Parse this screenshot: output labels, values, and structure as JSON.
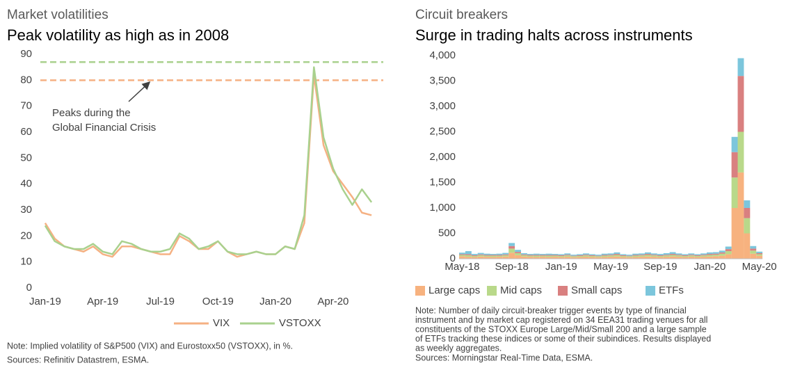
{
  "chart_data": [
    {
      "type": "line",
      "subtitle": "Market volatilities",
      "title": "Peak volatility as high as in 2008",
      "categories": [
        "Jan-19",
        null,
        null,
        null,
        null,
        null,
        "Apr-19",
        null,
        null,
        null,
        null,
        null,
        "Jul-19",
        null,
        null,
        null,
        null,
        null,
        "Oct-19",
        null,
        null,
        null,
        null,
        null,
        "Jan-20",
        null,
        null,
        null,
        null,
        null,
        "Apr-20",
        null,
        null,
        null,
        null
      ],
      "series": [
        {
          "name": "VIX",
          "color": "#f5b183",
          "values": [
            25,
            19,
            16,
            15,
            14,
            16,
            13,
            12,
            16,
            16,
            15,
            14,
            13,
            13,
            20,
            18,
            15,
            15,
            18,
            14,
            12,
            13,
            14,
            13,
            13,
            16,
            15,
            25,
            82,
            55,
            45,
            40,
            35,
            29,
            28
          ]
        },
        {
          "name": "VSTOXX",
          "color": "#a9d18e",
          "values": [
            24,
            18,
            16,
            15,
            15,
            17,
            14,
            13,
            18,
            17,
            15,
            14,
            14,
            15,
            21,
            19,
            15,
            16,
            18,
            14,
            13,
            13,
            14,
            13,
            13,
            16,
            15,
            28,
            85,
            58,
            46,
            38,
            32,
            38,
            33
          ]
        }
      ],
      "ylim": [
        0,
        90
      ],
      "yticks": [
        0,
        10,
        20,
        30,
        40,
        50,
        60,
        70,
        80,
        90
      ],
      "reference_lines": [
        {
          "value": 80,
          "color": "#f5b183"
        },
        {
          "value": 87,
          "color": "#a9d18e"
        }
      ],
      "annotation": [
        "Peaks during the",
        "Global Financial Crisis"
      ],
      "legend": "bottom",
      "notes": [
        "Note: Implied volatility of S&P500 (VIX) and Eurostoxx50 (VSTOXX), in %.",
        "Sources: Refinitiv Datastrem, ESMA."
      ]
    },
    {
      "type": "stacked_bar",
      "subtitle": "Circuit breakers",
      "title": "Surge in trading halts across instruments",
      "categories": [
        "May-18",
        null,
        null,
        null,
        null,
        null,
        null,
        null,
        "Sep-18",
        null,
        null,
        null,
        null,
        null,
        null,
        null,
        "Jan-19",
        null,
        null,
        null,
        null,
        null,
        null,
        null,
        "May-19",
        null,
        null,
        null,
        null,
        null,
        null,
        null,
        "Sep-19",
        null,
        null,
        null,
        null,
        null,
        null,
        null,
        "Jan-20",
        null,
        null,
        null,
        null,
        null,
        null,
        null,
        "May-20"
      ],
      "series": [
        {
          "name": "Large caps",
          "color": "#f7b27f",
          "values": [
            50,
            40,
            35,
            45,
            40,
            35,
            40,
            45,
            120,
            70,
            45,
            40,
            35,
            40,
            35,
            40,
            35,
            40,
            30,
            35,
            40,
            35,
            30,
            35,
            40,
            45,
            35,
            30,
            35,
            40,
            45,
            40,
            35,
            40,
            45,
            40,
            35,
            40,
            35,
            40,
            45,
            50,
            60,
            90,
            1000,
            1700,
            500,
            100,
            60
          ]
        },
        {
          "name": "Mid caps",
          "color": "#b9d98a",
          "values": [
            25,
            30,
            20,
            25,
            20,
            25,
            20,
            25,
            80,
            40,
            25,
            20,
            25,
            20,
            25,
            20,
            20,
            25,
            20,
            20,
            25,
            20,
            20,
            25,
            25,
            30,
            20,
            20,
            25,
            25,
            30,
            25,
            20,
            25,
            30,
            25,
            20,
            25,
            20,
            25,
            30,
            30,
            40,
            60,
            600,
            800,
            300,
            60,
            30
          ]
        },
        {
          "name": "Small caps",
          "color": "#d98080",
          "values": [
            15,
            20,
            15,
            15,
            15,
            15,
            15,
            15,
            50,
            25,
            15,
            15,
            15,
            15,
            15,
            15,
            15,
            15,
            10,
            15,
            15,
            15,
            10,
            15,
            15,
            20,
            15,
            10,
            15,
            15,
            20,
            15,
            15,
            15,
            20,
            15,
            15,
            15,
            15,
            15,
            20,
            20,
            25,
            40,
            500,
            1100,
            200,
            40,
            20
          ]
        },
        {
          "name": "ETFs",
          "color": "#7cc6dc",
          "values": [
            30,
            60,
            25,
            30,
            25,
            20,
            25,
            30,
            60,
            40,
            25,
            20,
            25,
            20,
            25,
            20,
            20,
            25,
            20,
            20,
            25,
            20,
            20,
            25,
            25,
            30,
            20,
            20,
            25,
            25,
            30,
            25,
            25,
            30,
            35,
            25,
            20,
            25,
            20,
            25,
            30,
            30,
            35,
            50,
            300,
            350,
            150,
            50,
            30
          ]
        }
      ],
      "ylim": [
        0,
        4000
      ],
      "yticks": [
        0,
        500,
        {
          "value": 1000,
          "label": "1,000"
        },
        {
          "value": 1500,
          "label": "1,500"
        },
        {
          "value": 2000,
          "label": "2,000"
        },
        {
          "value": 2500,
          "label": "2,500"
        },
        {
          "value": 3000,
          "label": "3,000"
        },
        {
          "value": 3500,
          "label": "3,500"
        },
        {
          "value": 4000,
          "label": "4,000"
        }
      ],
      "legend": "bottom",
      "notes": [
        "Note: Number of daily circuit-breaker trigger events by type of financial",
        "instrument and by market cap registered on 34 EEA31 trading venues for all",
        "constituents of the STOXX Europe Large/Mid/Small 200 and a large sample",
        "of ETFs tracking these indices or some of their subindices. Results displayed",
        "as weekly aggregates.",
        "Sources: Morningstar Real-Time Data, ESMA."
      ]
    }
  ]
}
